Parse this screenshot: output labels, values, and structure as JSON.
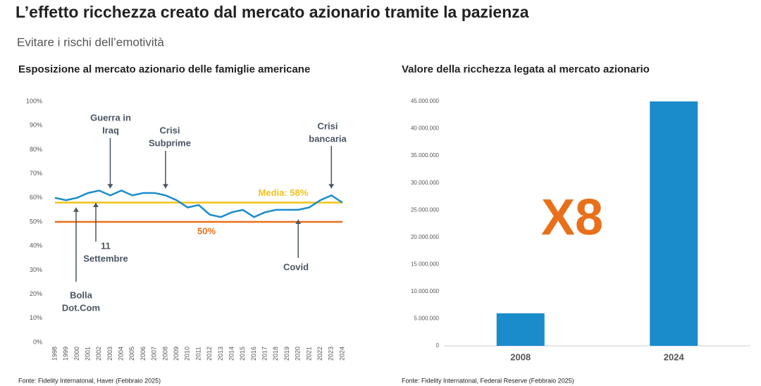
{
  "header": {
    "title": "L’effetto ricchezza creato dal mercato azionario tramite la pazienza",
    "subtitle": "Evitare i rischi dell’emotività"
  },
  "chart_data": [
    {
      "type": "line",
      "title": "Esposizione al mercato azionario delle famiglie americane",
      "source": "Fonte: Fidelity Internatonal, Haver (Febbraio 2025)",
      "x": [
        1998,
        1999,
        2000,
        2001,
        2002,
        2003,
        2004,
        2005,
        2006,
        2007,
        2008,
        2009,
        2010,
        2011,
        2012,
        2013,
        2014,
        2015,
        2016,
        2017,
        2018,
        2019,
        2020,
        2021,
        2022,
        2023,
        2024
      ],
      "values": [
        60,
        59,
        60,
        62,
        63,
        61,
        63,
        61,
        62,
        62,
        61,
        59,
        56,
        57,
        53,
        52,
        54,
        55,
        52,
        54,
        55,
        55,
        55,
        56,
        59,
        61,
        58
      ],
      "color": "#1a8ccc",
      "ylim": [
        0,
        100
      ],
      "yticks": [
        {
          "value": 0,
          "label": "0%"
        },
        {
          "value": 10,
          "label": "10%"
        },
        {
          "value": 20,
          "label": "20%"
        },
        {
          "value": 30,
          "label": "30%"
        },
        {
          "value": 40,
          "label": "40%"
        },
        {
          "value": 50,
          "label": "50%"
        },
        {
          "value": 60,
          "label": "60%"
        },
        {
          "value": 70,
          "label": "70%"
        },
        {
          "value": 80,
          "label": "80%"
        },
        {
          "value": 90,
          "label": "90%"
        },
        {
          "value": 100,
          "label": "100%"
        }
      ],
      "reference_lines": [
        {
          "value": 58,
          "label": "Media: 58%",
          "color": "#f5c21b"
        },
        {
          "value": 50,
          "label": "50%",
          "color": "#e8701a"
        }
      ],
      "annotations": [
        {
          "x": 2003,
          "lines": [
            "Guerra in",
            "Iraq"
          ]
        },
        {
          "x": 2008,
          "lines": [
            "Crisi",
            "Subprime"
          ]
        },
        {
          "x": 2023,
          "lines": [
            "Crisi",
            "bancaria"
          ]
        },
        {
          "x": 2001,
          "lines": [
            "11",
            "Settembre"
          ]
        },
        {
          "x": 2000,
          "lines": [
            "Bolla",
            "Dot.Com"
          ]
        },
        {
          "x": 2020,
          "lines": [
            "Covid"
          ]
        }
      ]
    },
    {
      "type": "bar",
      "title": "Valore della ricchezza legata al mercato azionario",
      "source": "Fonte: Fidelity Internatonal, Federal Reserve (Febbraio 2025)",
      "categories": [
        "2008",
        "2024"
      ],
      "values": [
        6000000,
        45000000
      ],
      "color": "#1a8ccc",
      "ylim": [
        0,
        45000000
      ],
      "yticks": [
        0,
        {
          "value": 5000000,
          "label": "5.000.000"
        },
        {
          "value": 10000000,
          "label": "10.000.000"
        },
        {
          "value": 15000000,
          "label": "15.000.000"
        },
        {
          "value": 20000000,
          "label": "20.000.000"
        },
        {
          "value": 25000000,
          "label": "25.000.000"
        },
        {
          "value": 30000000,
          "label": "30.000.000"
        },
        {
          "value": 35000000,
          "label": "35.000.000"
        },
        {
          "value": 40000000,
          "label": "40.000.000"
        },
        {
          "value": 45000000,
          "label": "45.000.000"
        }
      ],
      "annotation": "X8",
      "annotation_color": "#e8701a"
    }
  ]
}
